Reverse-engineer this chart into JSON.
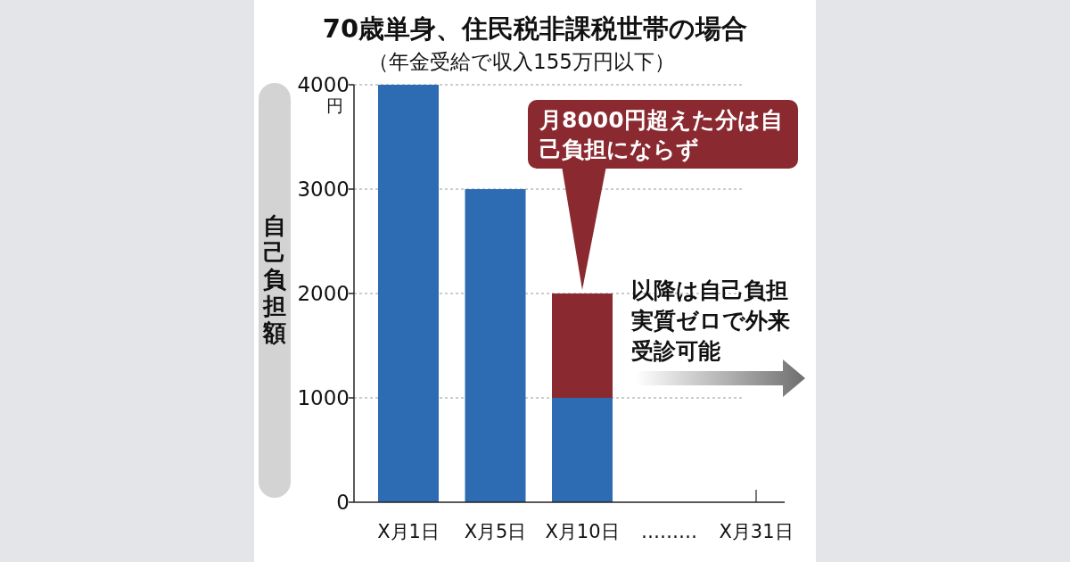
{
  "chart_data": {
    "type": "bar",
    "title": "70歳単身、住民税非課税世帯の場合",
    "subtitle": "（年金受給で収入155万円以下）",
    "ylabel": "自己負担額",
    "categories": [
      "X月1日",
      "X月5日",
      "X月10日",
      "………",
      "X月31日"
    ],
    "stacked": true,
    "series": [
      {
        "color": "#2d6bb3",
        "values": [
          4000,
          3000,
          1000,
          null,
          null
        ]
      },
      {
        "color": "#8a2a30",
        "values": [
          null,
          null,
          1000,
          null,
          null
        ]
      }
    ],
    "ylim": [
      0,
      4000
    ],
    "yticks": [
      0,
      1000,
      2000,
      3000,
      4000
    ],
    "grid": "y",
    "annotations": [
      {
        "text": "月8000円超えた分は自己負担にならず",
        "x": "X月10日",
        "y": 2000
      },
      "以降は自己負担実質ゼロで外来受診可能",
      "円"
    ]
  }
}
